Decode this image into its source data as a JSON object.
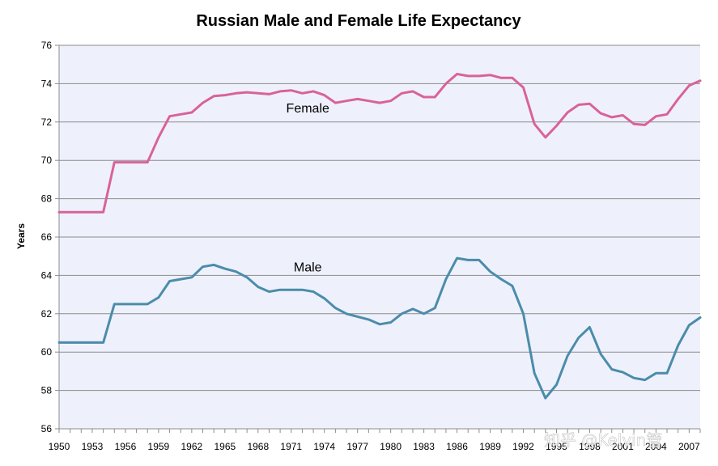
{
  "watermark": "知乎 @Kelvin管",
  "chart_data": {
    "type": "line",
    "title": "Russian Male and Female Life Expectancy",
    "xlabel": "",
    "ylabel": "Years",
    "ylim": [
      56,
      76
    ],
    "yticks": [
      56,
      58,
      60,
      62,
      64,
      66,
      68,
      70,
      72,
      74,
      76
    ],
    "xlim": [
      1950,
      2008
    ],
    "xticks": [
      1950,
      1953,
      1956,
      1959,
      1962,
      1965,
      1968,
      1971,
      1974,
      1977,
      1980,
      1983,
      1986,
      1989,
      1992,
      1995,
      1998,
      2001,
      2004,
      2007
    ],
    "grid": true,
    "x": [
      1950,
      1951,
      1952,
      1953,
      1954,
      1955,
      1956,
      1957,
      1958,
      1959,
      1960,
      1961,
      1962,
      1963,
      1964,
      1965,
      1966,
      1967,
      1968,
      1969,
      1970,
      1971,
      1972,
      1973,
      1974,
      1975,
      1976,
      1977,
      1978,
      1979,
      1980,
      1981,
      1982,
      1983,
      1984,
      1985,
      1986,
      1987,
      1988,
      1989,
      1990,
      1991,
      1992,
      1993,
      1994,
      1995,
      1996,
      1997,
      1998,
      1999,
      2000,
      2001,
      2002,
      2003,
      2004,
      2005,
      2006,
      2007,
      2008
    ],
    "series": [
      {
        "name": "Female",
        "color": "#d9629a",
        "values": [
          67.3,
          67.3,
          67.3,
          67.3,
          67.3,
          69.9,
          69.9,
          69.9,
          69.9,
          71.2,
          72.3,
          72.4,
          72.5,
          73.0,
          73.35,
          73.4,
          73.5,
          73.55,
          73.5,
          73.45,
          73.6,
          73.65,
          73.5,
          73.6,
          73.4,
          73.0,
          73.1,
          73.2,
          73.1,
          73.0,
          73.1,
          73.5,
          73.6,
          73.3,
          73.3,
          74.0,
          74.5,
          74.4,
          74.4,
          74.45,
          74.3,
          74.3,
          73.8,
          71.9,
          71.2,
          71.8,
          72.5,
          72.9,
          72.95,
          72.45,
          72.25,
          72.35,
          71.9,
          71.85,
          72.3,
          72.4,
          73.2,
          73.9,
          74.15
        ]
      },
      {
        "name": "Male",
        "color": "#4b8cab",
        "values": [
          60.5,
          60.5,
          60.5,
          60.5,
          60.5,
          62.5,
          62.5,
          62.5,
          62.5,
          62.85,
          63.7,
          63.8,
          63.9,
          64.45,
          64.55,
          64.35,
          64.2,
          63.9,
          63.4,
          63.15,
          63.25,
          63.25,
          63.25,
          63.15,
          62.8,
          62.3,
          62.0,
          61.85,
          61.7,
          61.45,
          61.55,
          62.0,
          62.25,
          62.0,
          62.3,
          63.8,
          64.9,
          64.8,
          64.8,
          64.2,
          63.8,
          63.45,
          62.0,
          58.9,
          57.6,
          58.3,
          59.8,
          60.75,
          61.3,
          59.9,
          59.1,
          58.95,
          58.65,
          58.55,
          58.9,
          58.9,
          60.35,
          61.4,
          61.8
        ]
      }
    ],
    "annotations": [
      {
        "text": "Female",
        "x": 1972.5,
        "y": 72.5
      },
      {
        "text": "Male",
        "x": 1972.5,
        "y": 64.2
      }
    ]
  }
}
